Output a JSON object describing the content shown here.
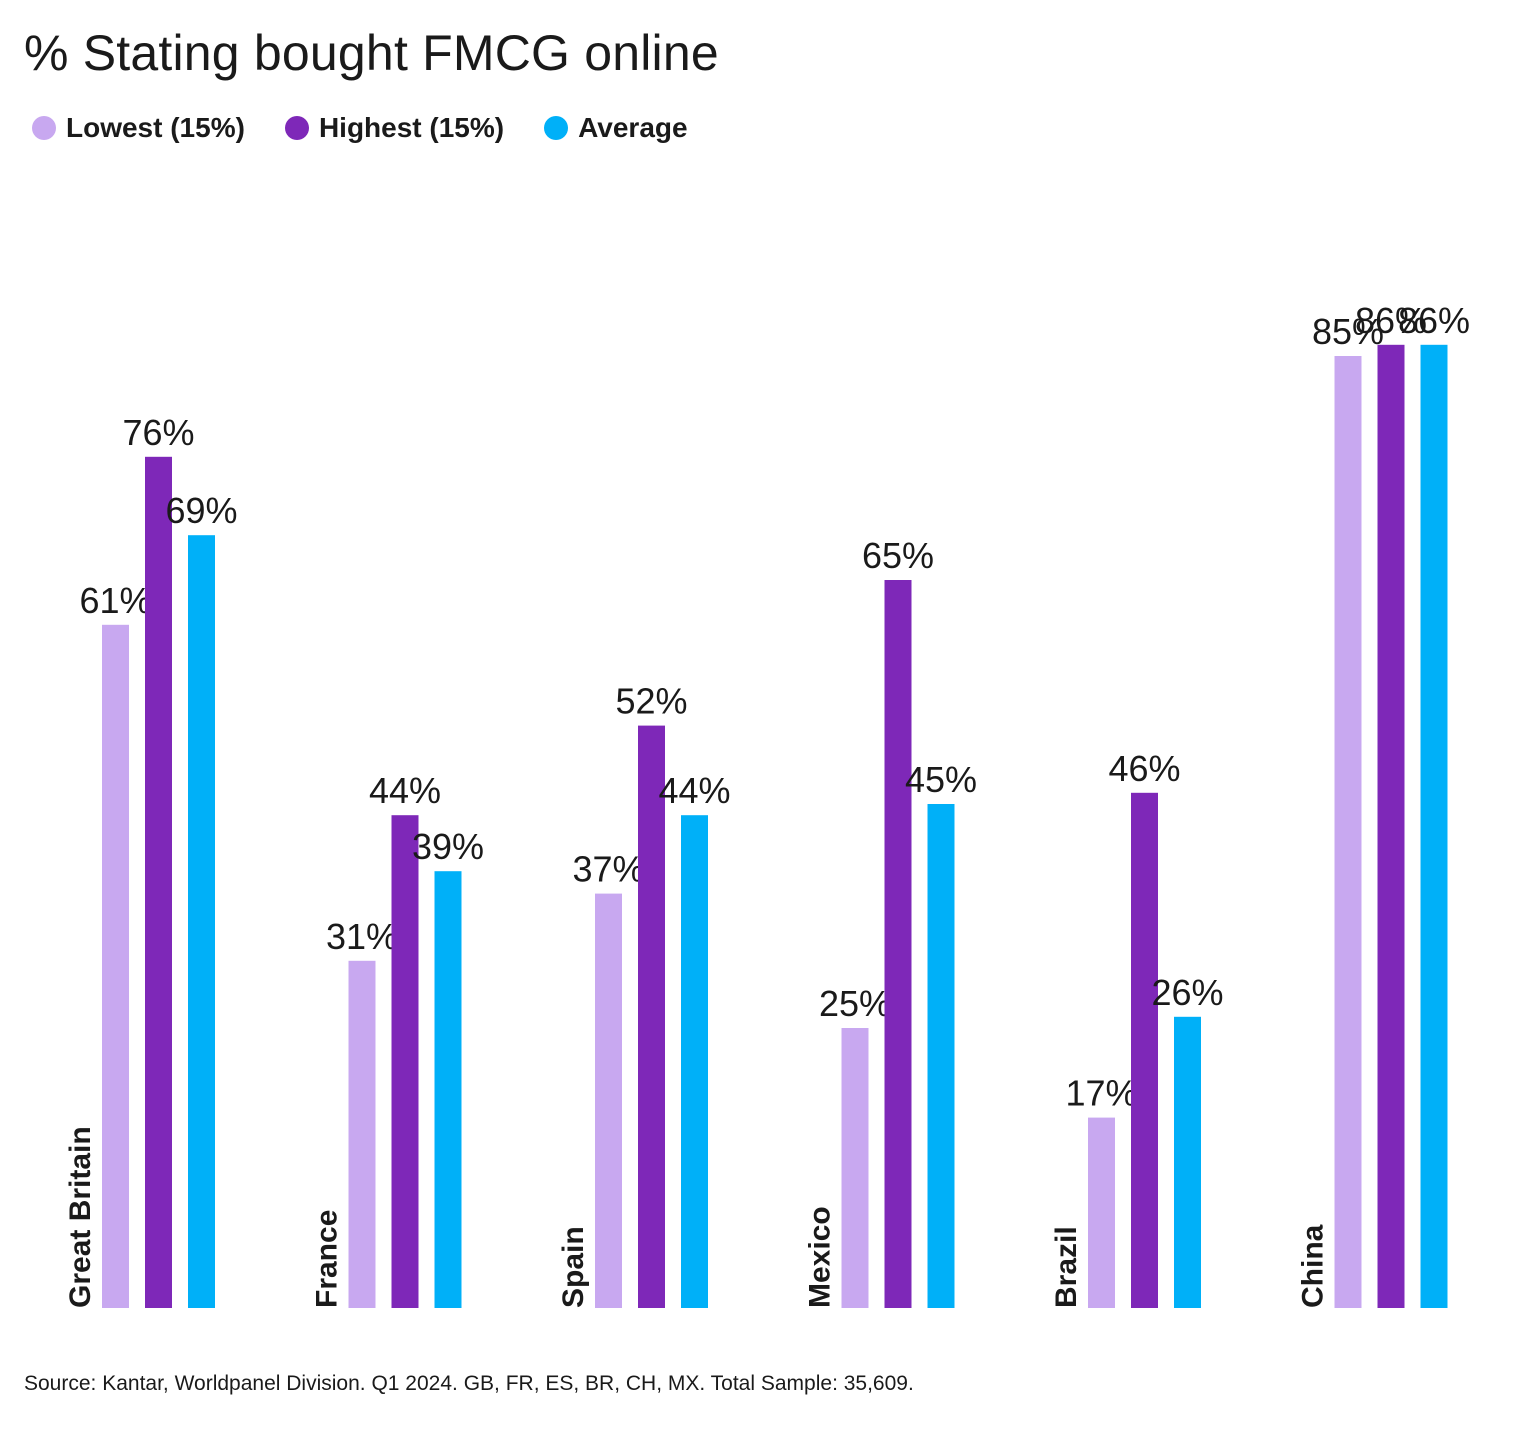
{
  "colors": {
    "lowest": "#c8a8f0",
    "highest": "#7e28b8",
    "average": "#00b0f8"
  },
  "chart_data": {
    "type": "bar",
    "title": "% Stating bought FMCG online",
    "categories": [
      "Great Britain",
      "France",
      "Spain",
      "Mexico",
      "Brazil",
      "China"
    ],
    "series": [
      {
        "name": "Lowest (15%)",
        "key": "lowest",
        "values": [
          61,
          31,
          37,
          25,
          17,
          85
        ],
        "labels": [
          "61%",
          "31%",
          "37%",
          "25%",
          "17%",
          "85%"
        ]
      },
      {
        "name": "Highest (15%)",
        "key": "highest",
        "values": [
          76,
          44,
          52,
          65,
          46,
          86
        ],
        "labels": [
          "76%",
          "44%",
          "52%",
          "65%",
          "46%",
          "86%"
        ]
      },
      {
        "name": "Average",
        "key": "average",
        "values": [
          69,
          39,
          44,
          45,
          26,
          86
        ],
        "labels": [
          "69%",
          "39%",
          "44%",
          "45%",
          "26%",
          "86%"
        ]
      }
    ],
    "ylim": [
      0,
      100
    ],
    "grid": false,
    "legend": "top-left",
    "source": "Source: Kantar, Worldpanel Division. Q1 2024. GB, FR, ES, BR, CH, MX. Total Sample: 35,609."
  }
}
